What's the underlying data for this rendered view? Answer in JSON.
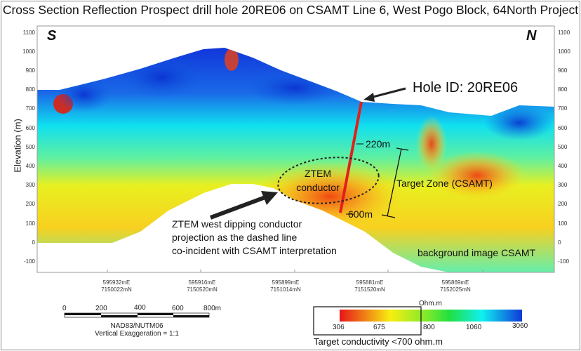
{
  "title": "Cross Section Reflection Prospect drill hole 20RE06 on CSAMT Line 6, West Pogo Block, 64North Project",
  "direction_left": "S",
  "direction_right": "N",
  "y_axis": {
    "label": "Elevation (m)",
    "ticks": [
      "1100",
      "1000",
      "900",
      "800",
      "700",
      "600",
      "500",
      "400",
      "300",
      "200",
      "100",
      "0",
      "-100"
    ]
  },
  "x_axis": {
    "ticks": [
      {
        "e": "595932mE",
        "n": "7150022mN"
      },
      {
        "e": "595916mE",
        "n": "7150520mN"
      },
      {
        "e": "595899mE",
        "n": "7151014mN"
      },
      {
        "e": "595881mE",
        "n": "7151520mN"
      },
      {
        "e": "595869mE",
        "n": "7152025mN"
      }
    ]
  },
  "annotations": {
    "hole_id": "Hole ID: 20RE06",
    "depth_top": "220m",
    "depth_bottom": "600m",
    "target_zone": "Target Zone (CSAMT)",
    "ztem_line1": "ZTEM",
    "ztem_line2": "conductor",
    "note_lines": [
      "ZTEM west dipping conductor",
      "projection as the dashed line",
      "co-incident with CSAMT interpretation"
    ],
    "background": "background image CSAMT"
  },
  "scale_bar": {
    "ticks": [
      "0",
      "200",
      "400",
      "600",
      "800m"
    ],
    "datum": "NAD83/NUTM06",
    "exaggeration": "Vertical Exaggeration = 1:1"
  },
  "colorbar": {
    "unit": "Ohm.m",
    "ticks": [
      "306",
      "675",
      "800",
      "1060",
      "3060"
    ],
    "colors": [
      "#e8141a",
      "#f7ef10",
      "#20e030",
      "#10f0f0",
      "#1038d8"
    ],
    "note": "Target conductivity <700 ohm.m"
  },
  "colors": {
    "hole": "#e0201c"
  }
}
